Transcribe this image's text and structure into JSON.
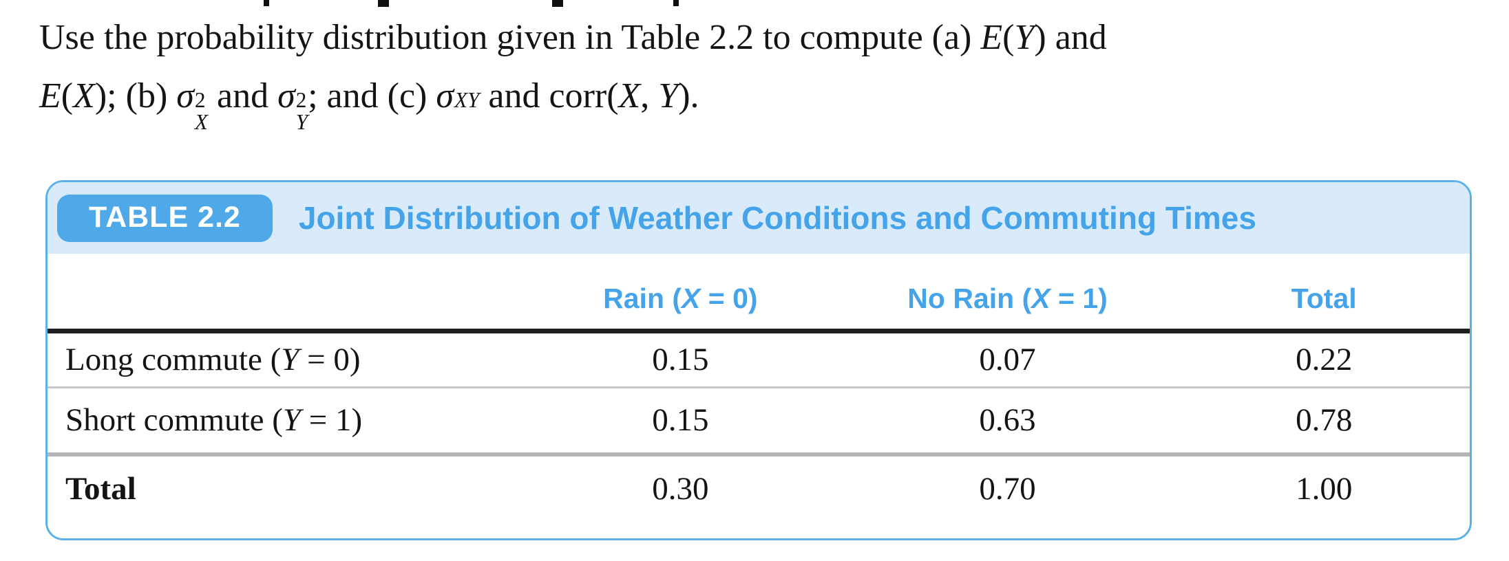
{
  "problem": {
    "lines": [
      [
        {
          "t": "Use the probability distribution given in Table 2.2 to compute (a) "
        },
        {
          "t": "E",
          "i": true
        },
        {
          "t": "("
        },
        {
          "t": "Y",
          "i": true
        },
        {
          "t": ") and"
        }
      ],
      [
        {
          "t": "E",
          "i": true
        },
        {
          "t": "("
        },
        {
          "t": "X",
          "i": true
        },
        {
          "t": "); (b) "
        },
        {
          "t": "σ",
          "i": true,
          "sup": "2",
          "sub": "X"
        },
        {
          "t": " and "
        },
        {
          "t": "σ",
          "i": true,
          "sup": "2",
          "sub": "Y"
        },
        {
          "t": "; and (c) "
        },
        {
          "t": "σ",
          "i": true,
          "sub": "XY"
        },
        {
          "t": " and corr("
        },
        {
          "t": "X",
          "i": true
        },
        {
          "t": ", "
        },
        {
          "t": "Y",
          "i": true
        },
        {
          "t": ")."
        }
      ]
    ]
  },
  "table": {
    "badge": "TABLE 2.2",
    "title": "Joint Distribution of Weather Conditions and Commuting Times",
    "columns": [
      {
        "pre": "",
        "var": "",
        "post": ""
      },
      {
        "pre": "Rain (",
        "var": "X",
        "post": " = 0)"
      },
      {
        "pre": "No Rain (",
        "var": "X",
        "post": " = 1)"
      },
      {
        "pre": "Total",
        "var": "",
        "post": ""
      }
    ],
    "rows": [
      {
        "label": {
          "pre": "Long commute (",
          "var": "Y",
          "post": " = 0)"
        },
        "values": [
          "0.15",
          "0.07",
          "0.22"
        ],
        "bold": false
      },
      {
        "label": {
          "pre": "Short commute (",
          "var": "Y",
          "post": " = 1)"
        },
        "values": [
          "0.15",
          "0.63",
          "0.78"
        ],
        "bold": false
      },
      {
        "label": {
          "pre": "Total",
          "var": "",
          "post": ""
        },
        "values": [
          "0.30",
          "0.70",
          "1.00"
        ],
        "bold": true
      }
    ]
  },
  "colors": {
    "badge_bg": "#4FA8E8",
    "title_text": "#45A4E9",
    "band_bg": "#D9EBFB",
    "card_border": "#5CB1E9",
    "header_rule": "#1E1E1E",
    "row_rule_thin": "#C6C6C6",
    "row_rule_thick": "#B5B5B5",
    "body_text": "#141414"
  }
}
